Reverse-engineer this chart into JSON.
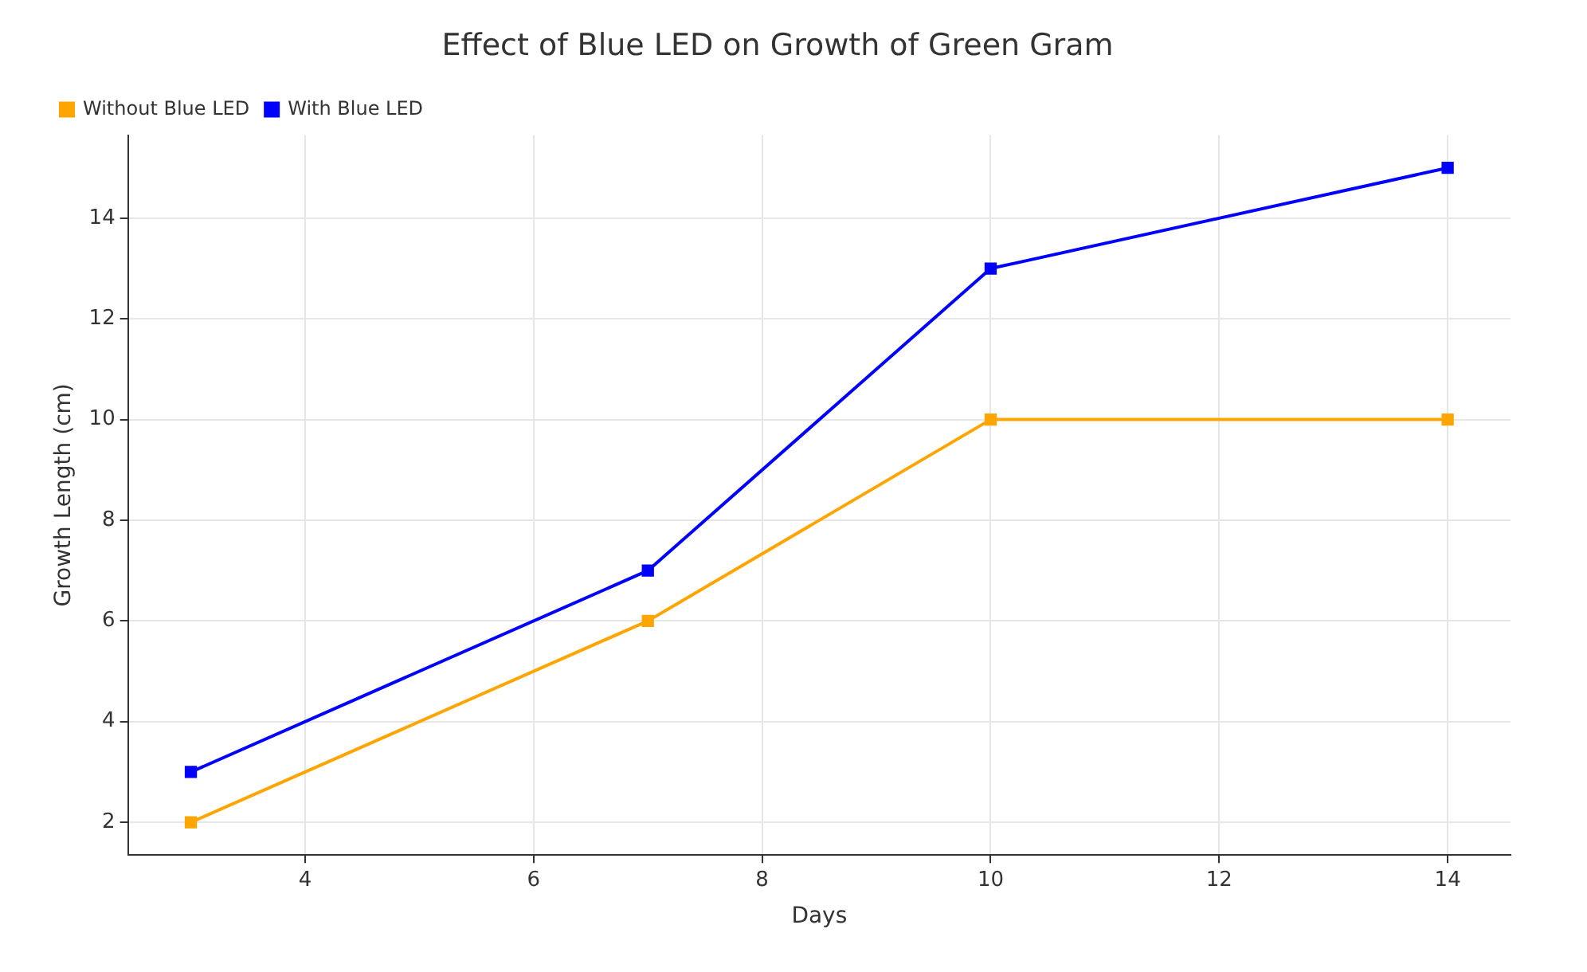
{
  "chart_data": {
    "type": "line",
    "title": "Effect of Blue LED on Growth of Green Gram",
    "xlabel": "Days",
    "ylabel": "Growth Length (cm)",
    "x": [
      3,
      7,
      10,
      14
    ],
    "series": [
      {
        "name": "Without Blue LED",
        "color": "#ffa500",
        "values": [
          2,
          6,
          10,
          10
        ]
      },
      {
        "name": "With Blue LED",
        "color": "#0000ff",
        "values": [
          3,
          7,
          13,
          15
        ]
      }
    ],
    "xlim": [
      2.45,
      14.55
    ],
    "xticks": [
      4,
      6,
      8,
      10,
      12,
      14
    ],
    "ylim": [
      1.35,
      15.65
    ],
    "yticks": [
      2,
      4,
      6,
      8,
      10,
      12,
      14
    ],
    "grid": true,
    "legend": "top left",
    "marker": "square",
    "line_style": "solid"
  }
}
